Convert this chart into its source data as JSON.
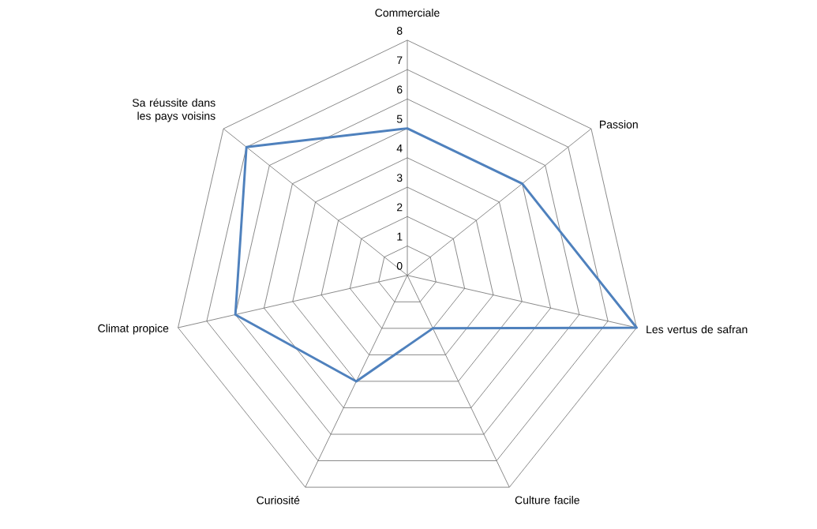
{
  "chart_data": {
    "type": "radar",
    "categories": [
      "Commerciale",
      "Passion",
      "Les vertus de safran",
      "Culture facile",
      "Curiosité",
      "Climat propice",
      "Sa réussite dans les pays voisins"
    ],
    "series": [
      {
        "color": "#4f81bd",
        "values": [
          5,
          5,
          8,
          2,
          4,
          6,
          7
        ]
      }
    ],
    "ylim": [
      0,
      8
    ],
    "yticks": [
      0,
      1,
      2,
      3,
      4,
      5,
      6,
      7,
      8
    ],
    "grid": true
  }
}
